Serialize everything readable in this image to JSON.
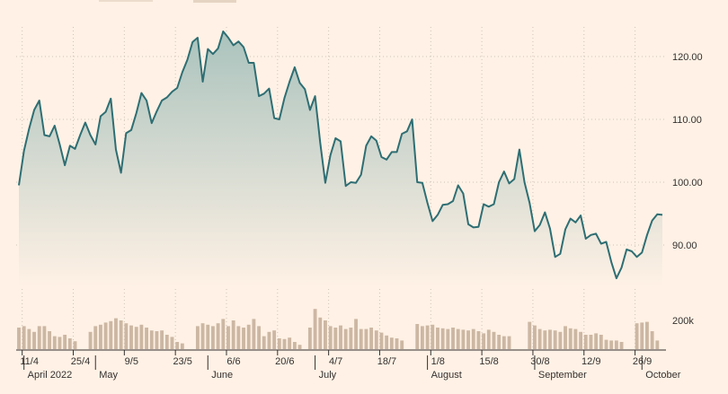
{
  "chart_data": {
    "type": "line",
    "title": "",
    "ylim": [
      80,
      125
    ],
    "y_ticks": [
      "120.00",
      "110.00",
      "100.00",
      "90.00"
    ],
    "y_tick_values": [
      120,
      110,
      100,
      90
    ],
    "volume_label": "200k",
    "grid": true,
    "colors": {
      "line": "#2e6e73",
      "area_top": "#aac3bd",
      "volume": "#ccb7a3",
      "background": "#fff1e5"
    },
    "x_ticks": [
      "11/4",
      "25/4",
      "9/5",
      "23/5",
      "6/6",
      "20/6",
      "4/7",
      "18/7",
      "1/8",
      "15/8",
      "30/8",
      "12/9",
      "26/9"
    ],
    "x_tick_index": [
      1,
      11,
      21,
      31,
      41,
      51,
      61,
      71,
      81,
      91,
      101,
      111,
      121
    ],
    "month_labels": [
      "April 2022",
      "May",
      "June",
      "July",
      "August",
      "September",
      "October"
    ],
    "month_index": [
      1,
      15,
      37,
      58,
      80,
      101,
      122
    ],
    "series": [
      {
        "values": [
          99.5,
          105,
          108.5,
          111.5,
          113,
          107.5,
          107.3,
          109,
          106,
          102.7,
          105.8,
          105.3,
          107.5,
          109.5,
          107.5,
          106,
          110.5,
          111.2,
          113.3,
          105.2,
          101.5,
          107.8,
          108.3,
          111,
          114.2,
          113,
          109.4,
          111.3,
          113,
          113.5,
          114.4,
          115,
          117.5,
          119.5,
          122.3,
          123,
          116,
          121.2,
          120.4,
          121.3,
          124,
          123,
          121.8,
          122.4,
          121.5,
          119,
          119,
          113.7,
          114.1,
          114.9,
          110.2,
          110,
          113.4,
          116,
          118.3,
          115.8,
          114.8,
          111.5,
          113.7,
          106.3,
          99.9,
          104.3,
          107,
          106.5,
          99.4,
          100,
          99.9,
          101.2,
          105.8,
          107.3,
          106.6,
          104,
          103.6,
          104.8,
          104.8,
          107.7,
          108.1,
          110,
          100,
          99.9,
          96.7,
          93.8,
          94.8,
          96.4,
          96.5,
          97,
          99.5,
          98.2,
          93.3,
          92.8,
          92.9,
          96.5,
          96.1,
          96.5,
          100,
          101.7,
          99.8,
          100.5,
          105.2,
          100,
          96.7,
          92.2,
          93.2,
          95.2,
          92.6,
          88.1,
          88.6,
          92.5,
          94.2,
          93.6,
          94.7,
          91,
          91.6,
          91.8,
          90.2,
          90.5,
          87.3,
          84.7,
          86.4,
          89.3,
          89,
          88.1,
          88.8,
          91.6,
          93.9,
          94.9,
          94.8
        ]
      }
    ],
    "volume": [
      150,
      160,
      140,
      120,
      160,
      160,
      125,
      90,
      85,
      100,
      75,
      55,
      0,
      0,
      120,
      160,
      170,
      185,
      195,
      215,
      200,
      180,
      165,
      155,
      170,
      150,
      130,
      125,
      130,
      100,
      85,
      50,
      40,
      0,
      0,
      160,
      180,
      170,
      160,
      180,
      210,
      160,
      200,
      160,
      150,
      170,
      210,
      160,
      90,
      120,
      130,
      75,
      70,
      80,
      50,
      30,
      0,
      150,
      280,
      220,
      200,
      160,
      150,
      165,
      140,
      150,
      210,
      140,
      140,
      150,
      130,
      115,
      95,
      80,
      75,
      60,
      0,
      0,
      175,
      160,
      165,
      170,
      150,
      145,
      140,
      150,
      140,
      135,
      130,
      140,
      125,
      110,
      135,
      120,
      100,
      90,
      90,
      0,
      0,
      0,
      190,
      165,
      140,
      130,
      135,
      130,
      120,
      160,
      145,
      140,
      120,
      100,
      100,
      110,
      100,
      65,
      60,
      60,
      50,
      0,
      0,
      180,
      185,
      190,
      125,
      60
    ]
  }
}
